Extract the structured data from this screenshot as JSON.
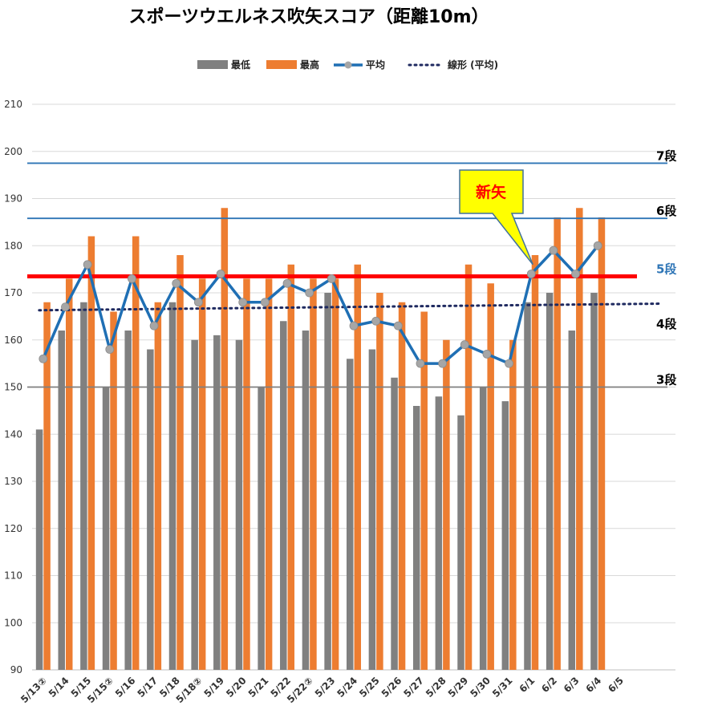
{
  "chart_data": {
    "type": "bar",
    "title": "スポーツウエルネス吹矢スコア（距離10m）",
    "categories": [
      "5/13②",
      "5/14",
      "5/15",
      "5/15②",
      "5/16",
      "5/17",
      "5/18",
      "5/18②",
      "5/19",
      "5/20",
      "5/21",
      "5/22",
      "5/22②",
      "5/23",
      "5/24",
      "5/25",
      "5/26",
      "5/27",
      "5/28",
      "5/29",
      "5/30",
      "5/31",
      "6/1",
      "6/2",
      "6/3",
      "6/4",
      "6/5"
    ],
    "series": [
      {
        "name": "最低",
        "kind": "bar",
        "color": "#808080",
        "values": [
          141,
          162,
          168,
          150,
          162,
          158,
          168,
          160,
          161,
          160,
          150,
          164,
          162,
          170,
          156,
          158,
          152,
          146,
          148,
          144,
          150,
          147,
          168,
          170,
          162,
          170,
          null
        ]
      },
      {
        "name": "最高",
        "kind": "bar",
        "color": "#ed7d31",
        "values": [
          168,
          173,
          182,
          166,
          182,
          168,
          178,
          173,
          188,
          173,
          173,
          176,
          173,
          173,
          176,
          170,
          168,
          166,
          160,
          176,
          172,
          160,
          178,
          186,
          188,
          186,
          null
        ]
      },
      {
        "name": "平均",
        "kind": "line",
        "color": "#1f6fb4",
        "marker_color": "#a6a6a6",
        "values": [
          156,
          167,
          176,
          158,
          173,
          163,
          172,
          168,
          174,
          168,
          168,
          172,
          170,
          173,
          163,
          164,
          163,
          155,
          155,
          159,
          157,
          155,
          174,
          179,
          174,
          180,
          null
        ]
      },
      {
        "name": "線形 (平均)",
        "kind": "trend",
        "color": "#1f2a60",
        "start": 166.3,
        "end": 167.7
      }
    ],
    "ylim": [
      90,
      210
    ],
    "yticks": [
      90,
      100,
      110,
      120,
      130,
      140,
      150,
      160,
      170,
      180,
      190,
      200,
      210
    ],
    "ylabel": "",
    "xlabel": "",
    "grid": true,
    "legend_position": "top",
    "rank_lines": [
      {
        "label": "7段",
        "value": 197.5,
        "color": "#2e75b6",
        "label_color": "#000000",
        "thick": false
      },
      {
        "label": "6段",
        "value": 185.8,
        "color": "#2e75b6",
        "label_color": "#000000",
        "thick": false
      },
      {
        "label": "5段",
        "value": 173.5,
        "color": "#ff0000",
        "label_color": "#2e75b6",
        "thick": true
      },
      {
        "label": "4段",
        "value": 161.8,
        "color": null,
        "label_color": "#000000",
        "thick": false
      },
      {
        "label": "3段",
        "value": 150,
        "color": "#7f7f7f",
        "label_color": "#000000",
        "thick": false
      }
    ],
    "annotation": {
      "text": "新矢",
      "target_category": "6/1",
      "bg": "#ffff00",
      "border": "#41719c",
      "text_color": "#ff0000"
    }
  }
}
